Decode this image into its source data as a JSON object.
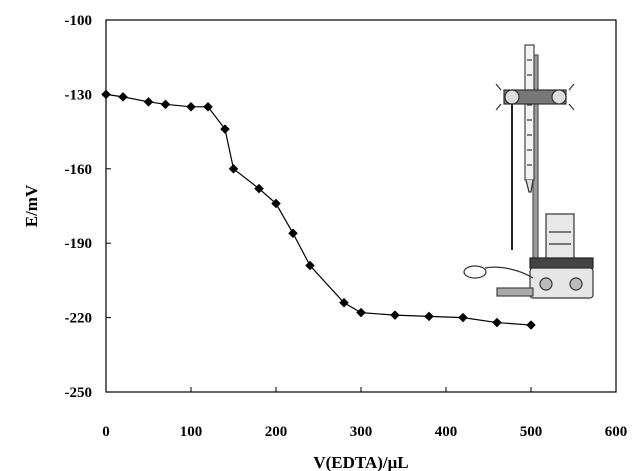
{
  "chart_data": {
    "type": "scatter",
    "title": "",
    "xlabel": "V(EDTA)/μL",
    "ylabel": "E/mV",
    "xlim": [
      0,
      600
    ],
    "ylim": [
      -250,
      -100
    ],
    "x_ticks": [
      0,
      100,
      200,
      300,
      400,
      500,
      600
    ],
    "y_ticks": [
      -100,
      -130,
      -160,
      -190,
      -220,
      -250
    ],
    "grid": false,
    "legend": "none",
    "marker": "diamond",
    "line_color": "#000000",
    "marker_color": "#000000",
    "series": [
      {
        "x": [
          0,
          20,
          50,
          70,
          100,
          120,
          140,
          150,
          180,
          200,
          220,
          240,
          280,
          300,
          340,
          380,
          420,
          460,
          500
        ],
        "y": [
          -130,
          -131,
          -133,
          -134,
          -135,
          -135,
          -144,
          -160,
          -168,
          -174,
          -186,
          -199,
          -214,
          -218,
          -219,
          -219.5,
          -220,
          -222,
          -223
        ]
      }
    ],
    "inset_illustration": "titration-apparatus-with-stirrer"
  }
}
